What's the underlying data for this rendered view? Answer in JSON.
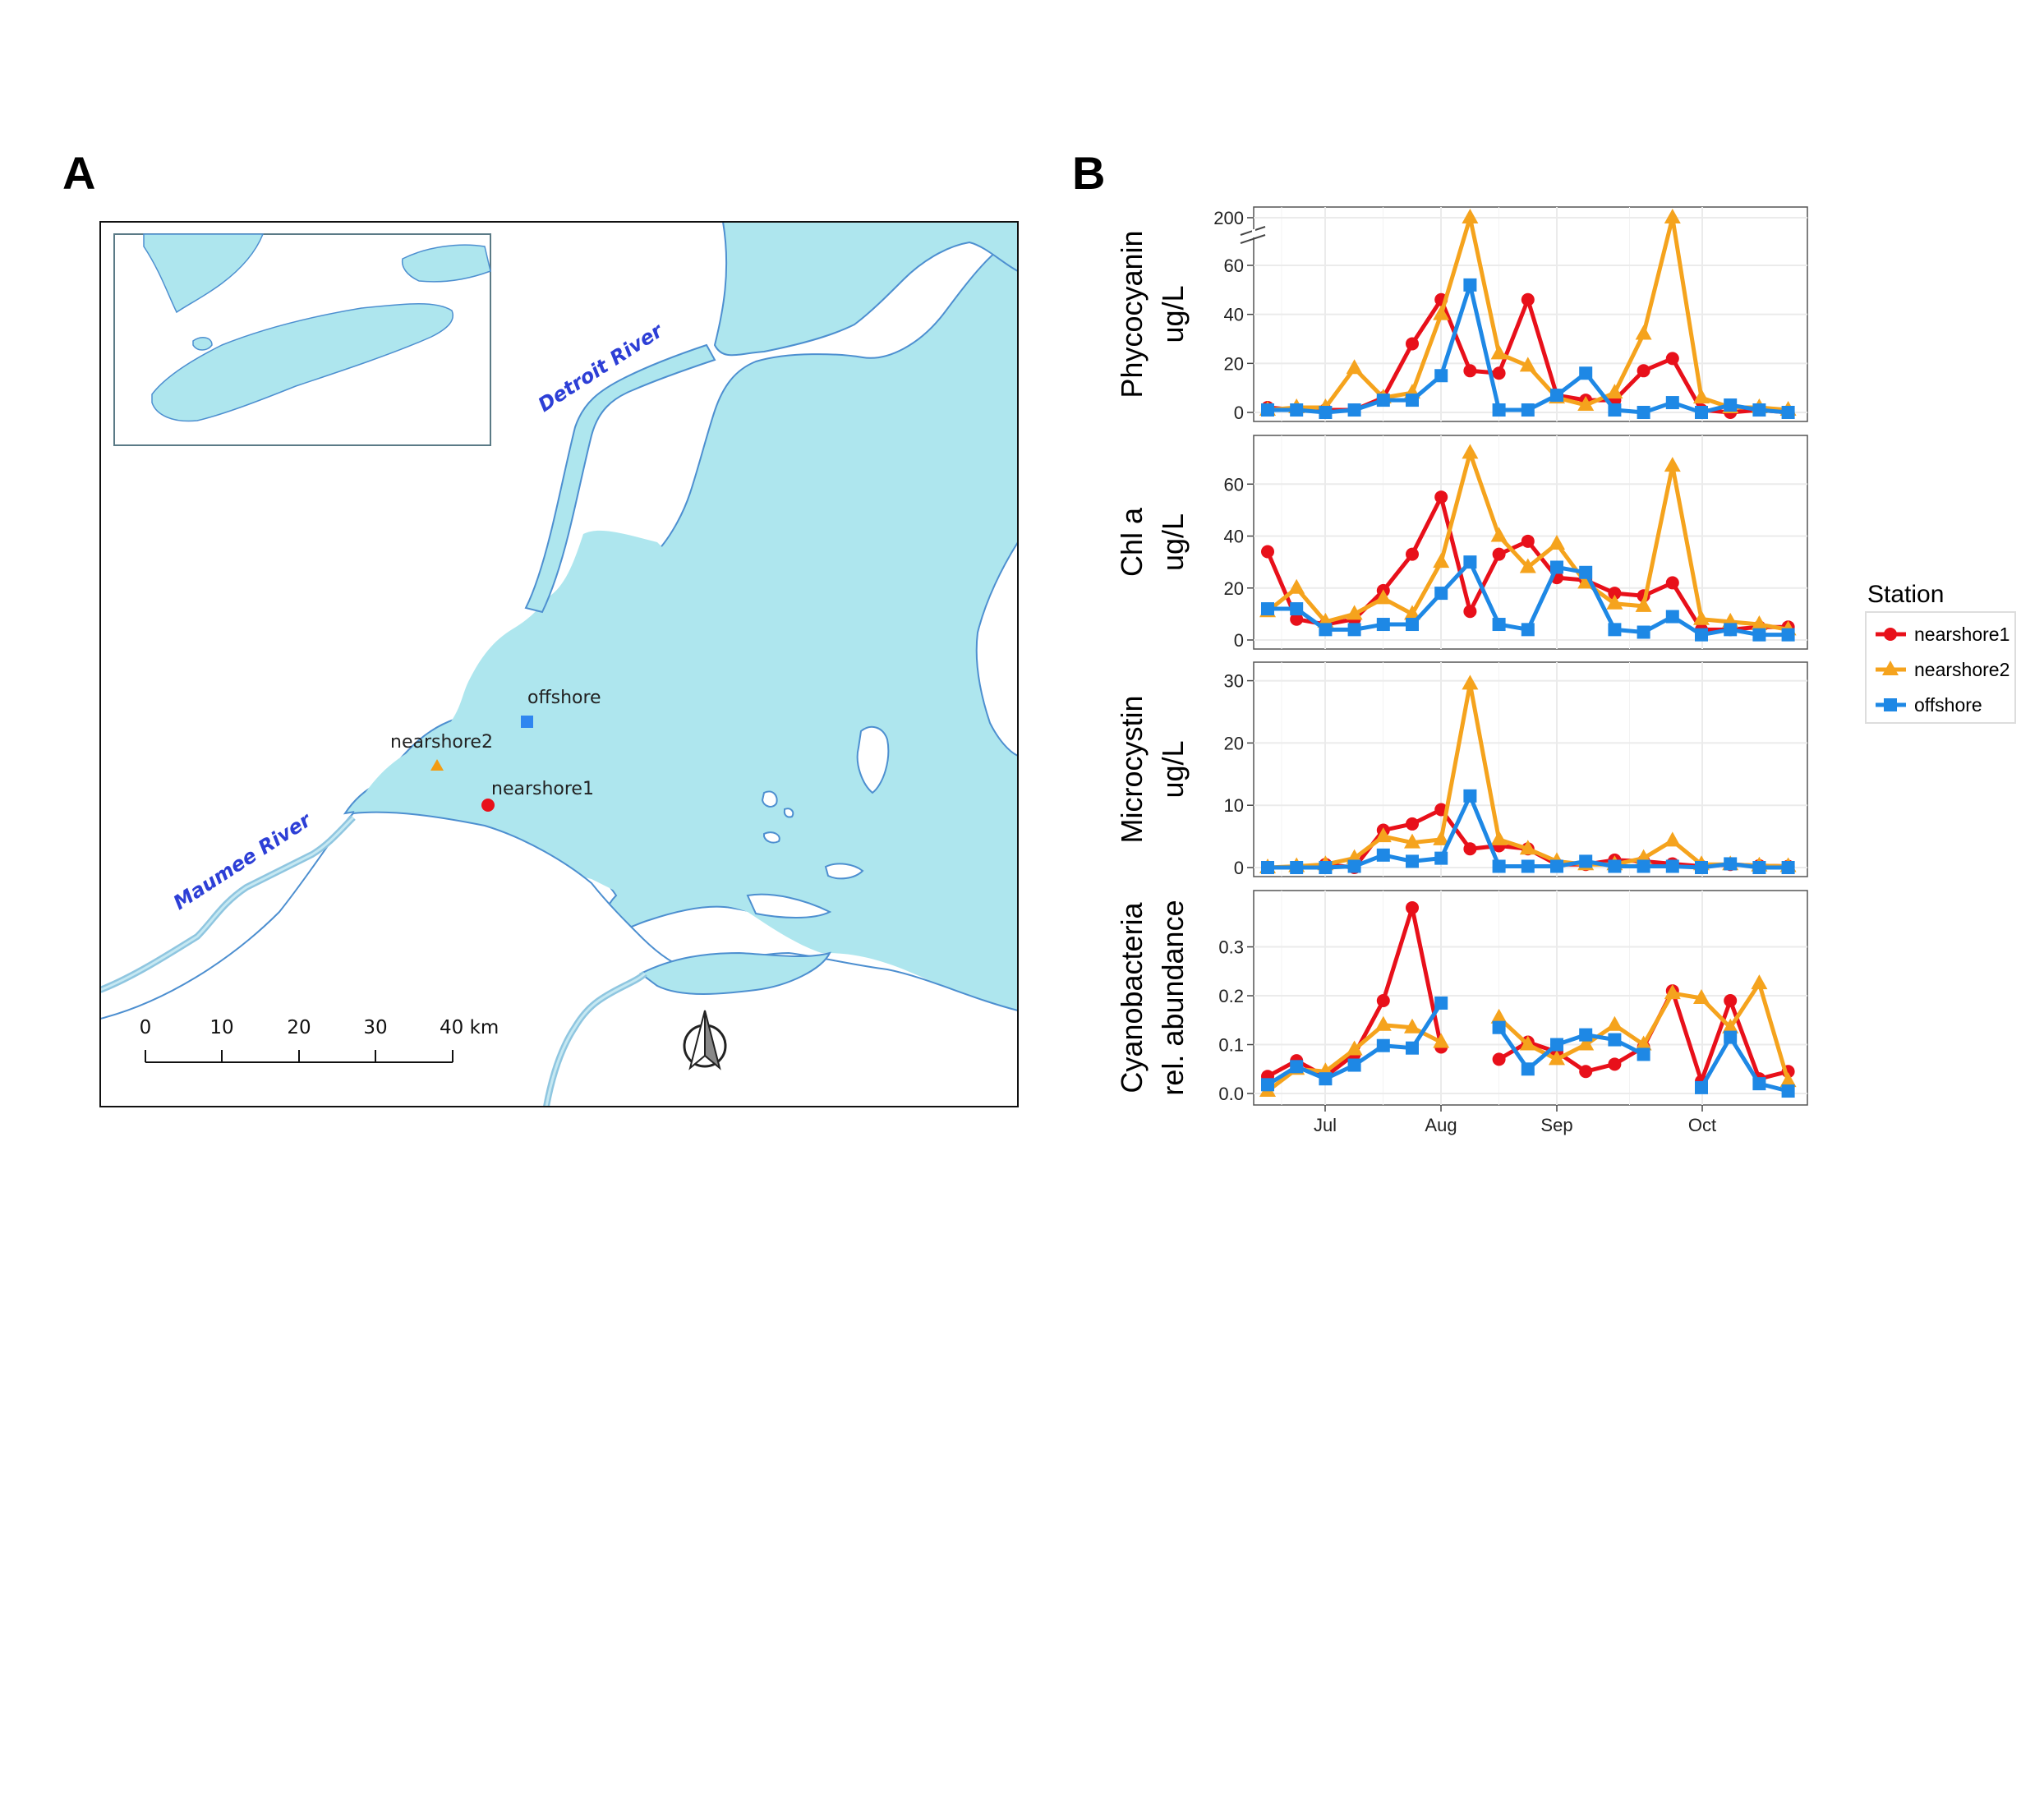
{
  "panels": {
    "a_letter": "A",
    "b_letter": "B"
  },
  "map": {
    "colors": {
      "water": "#aee6ee",
      "shore": "#4d8fd0",
      "river": "#9dd0e8"
    },
    "rivers": {
      "detroit": "Detroit River",
      "maumee": "Maumee River"
    },
    "stations": [
      {
        "name": "offshore",
        "marker": "square",
        "color": "#2f86f0"
      },
      {
        "name": "nearshore2",
        "marker": "triangle",
        "color": "#f39c12"
      },
      {
        "name": "nearshore1",
        "marker": "circle",
        "color": "#e8101a"
      }
    ],
    "scale_bar": {
      "ticks": [
        "0",
        "10",
        "20",
        "30",
        "40 km"
      ]
    },
    "north_arrow_icon": "north-arrow-icon"
  },
  "legend": {
    "title": "Station",
    "entries": [
      {
        "name": "nearshore1",
        "color": "#e8101a",
        "marker": "circle"
      },
      {
        "name": "nearshore2",
        "color": "#f5a31d",
        "marker": "triangle"
      },
      {
        "name": "offshore",
        "color": "#1e88e5",
        "marker": "square"
      }
    ]
  },
  "chart_data": [
    {
      "type": "line",
      "ylabel": [
        "Phycocyanin",
        "ug/L"
      ],
      "y_ticks": [
        "0",
        "20",
        "40",
        "60",
        "200"
      ],
      "y_axis_break": "between 60 and 200",
      "ylim": [
        0,
        200
      ],
      "x": [
        "Jun 24",
        "Jun 30",
        "Jul 7",
        "Jul 14",
        "Jul 21",
        "Jul 28",
        "Aug 4",
        "Aug 11",
        "Aug 18",
        "Aug 25",
        "Sep 1",
        "Sep 8",
        "Sep 15",
        "Sep 22",
        "Sep 29",
        "Oct 6",
        "Oct 13",
        "Oct 20",
        "Oct 27"
      ],
      "x_ticks": [
        "Jul",
        "Aug",
        "Sep",
        "Oct"
      ],
      "series": [
        {
          "name": "nearshore1",
          "values": [
            2,
            1,
            1,
            1,
            6,
            28,
            46,
            17,
            16,
            46,
            7,
            5,
            5,
            17,
            22,
            1,
            0,
            1,
            0
          ]
        },
        {
          "name": "nearshore2",
          "values": [
            1,
            2,
            2,
            18,
            6,
            8,
            40,
            200,
            24,
            19,
            6,
            3,
            8,
            32,
            200,
            6,
            2,
            2,
            1
          ]
        },
        {
          "name": "offshore",
          "values": [
            1,
            1,
            0,
            1,
            5,
            5,
            15,
            52,
            1,
            1,
            7,
            16,
            1,
            0,
            4,
            0,
            3,
            1,
            0
          ]
        }
      ]
    },
    {
      "type": "line",
      "ylabel": [
        "Chl a",
        "ug/L"
      ],
      "y_ticks": [
        "0",
        "20",
        "40",
        "60"
      ],
      "ylim": [
        0,
        74
      ],
      "x": [
        "Jun 24",
        "Jun 30",
        "Jul 7",
        "Jul 14",
        "Jul 21",
        "Jul 28",
        "Aug 4",
        "Aug 11",
        "Aug 18",
        "Aug 25",
        "Sep 1",
        "Sep 8",
        "Sep 15",
        "Sep 22",
        "Sep 29",
        "Oct 6",
        "Oct 13",
        "Oct 20",
        "Oct 27"
      ],
      "x_ticks": [
        "Jul",
        "Aug",
        "Sep",
        "Oct"
      ],
      "series": [
        {
          "name": "nearshore1",
          "values": [
            34,
            8,
            6,
            8,
            19,
            33,
            55,
            11,
            33,
            38,
            24,
            23,
            18,
            17,
            22,
            4,
            4,
            5,
            5
          ]
        },
        {
          "name": "nearshore2",
          "values": [
            11,
            20,
            7,
            10,
            16,
            10,
            30,
            72,
            40,
            28,
            37,
            22,
            14,
            13,
            67,
            8,
            7,
            6,
            4
          ]
        },
        {
          "name": "offshore",
          "values": [
            12,
            12,
            4,
            4,
            6,
            6,
            18,
            30,
            6,
            4,
            28,
            26,
            4,
            3,
            9,
            2,
            4,
            2,
            2
          ]
        }
      ]
    },
    {
      "type": "line",
      "ylabel": [
        "Microcystin",
        "ug/L"
      ],
      "y_ticks": [
        "0",
        "10",
        "20",
        "30"
      ],
      "ylim": [
        0,
        31
      ],
      "x": [
        "Jun 24",
        "Jun 30",
        "Jul 7",
        "Jul 14",
        "Jul 21",
        "Jul 28",
        "Aug 4",
        "Aug 11",
        "Aug 18",
        "Aug 25",
        "Sep 1",
        "Sep 8",
        "Sep 15",
        "Sep 22",
        "Sep 29",
        "Oct 6",
        "Oct 13",
        "Oct 20",
        "Oct 27"
      ],
      "x_ticks": [
        "Jul",
        "Aug",
        "Sep",
        "Oct"
      ],
      "series": [
        {
          "name": "nearshore1",
          "values": [
            0,
            0,
            0.5,
            0,
            6,
            7,
            9.3,
            3,
            3.5,
            3,
            0.5,
            0.5,
            1.2,
            1,
            0.6,
            0.2,
            0.5,
            0.3,
            0.2
          ]
        },
        {
          "name": "nearshore2",
          "values": [
            0,
            0.2,
            0.5,
            1.5,
            5,
            4,
            4.5,
            29.5,
            4.5,
            3,
            1,
            0.5,
            0.5,
            1.5,
            4.3,
            0.5,
            0.5,
            0.3,
            0.2
          ]
        },
        {
          "name": "offshore",
          "values": [
            0,
            0,
            0,
            0.2,
            2,
            1,
            1.5,
            11.5,
            0.2,
            0.2,
            0.2,
            1,
            0.2,
            0.2,
            0.2,
            0,
            0.6,
            0,
            0
          ]
        }
      ]
    },
    {
      "type": "line",
      "ylabel": [
        "Cyanobacteria",
        "rel. abundance"
      ],
      "y_ticks": [
        "0.0",
        "0.1",
        "0.2",
        "0.3"
      ],
      "ylim": [
        -0.005,
        0.39
      ],
      "x": [
        "Jun 24",
        "Jun 30",
        "Jul 7",
        "Jul 14",
        "Jul 21",
        "Jul 28",
        "Aug 4",
        "Aug 11",
        "Aug 18",
        "Aug 25",
        "Sep 1",
        "Sep 8",
        "Sep 15",
        "Sep 22",
        "Sep 29",
        "Oct 6",
        "Oct 13",
        "Oct 20",
        "Oct 27"
      ],
      "x_ticks": [
        "Jul",
        "Aug",
        "Sep",
        "Oct"
      ],
      "series": [
        {
          "name": "nearshore1",
          "values": [
            0.035,
            0.067,
            0.035,
            0.08,
            0.19,
            0.38,
            0.095,
            null,
            0.07,
            0.105,
            0.085,
            0.045,
            0.06,
            0.095,
            0.21,
            0.025,
            0.19,
            0.03,
            0.045
          ]
        },
        {
          "name": "nearshore2",
          "values": [
            0.005,
            0.05,
            0.045,
            0.09,
            0.14,
            0.135,
            0.105,
            null,
            0.155,
            0.1,
            0.07,
            0.1,
            0.14,
            0.1,
            0.205,
            0.195,
            0.135,
            0.225,
            0.025
          ]
        },
        {
          "name": "offshore",
          "values": [
            0.018,
            0.055,
            0.03,
            0.058,
            0.098,
            0.093,
            0.185,
            null,
            0.135,
            0.05,
            0.1,
            0.12,
            0.11,
            0.08,
            null,
            0.012,
            0.115,
            0.02,
            0.005
          ]
        }
      ]
    }
  ]
}
